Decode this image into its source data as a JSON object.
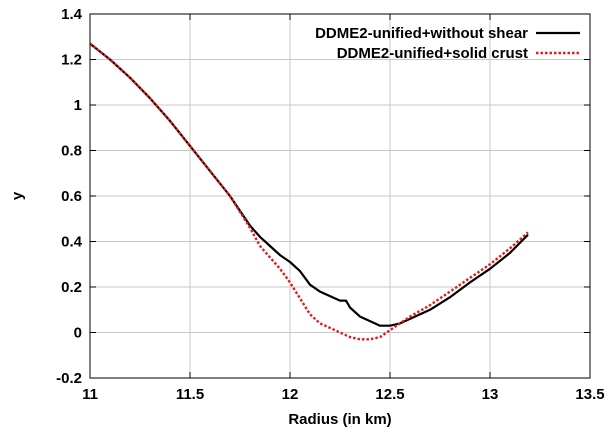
{
  "chart_data": {
    "type": "line",
    "title": "",
    "xlabel": "Radius (in km)",
    "ylabel": "y",
    "xlim": [
      11,
      13.5
    ],
    "ylim": [
      -0.2,
      1.4
    ],
    "xticks": [
      11,
      11.5,
      12,
      12.5,
      13,
      13.5
    ],
    "yticks": [
      -0.2,
      0,
      0.2,
      0.4,
      0.6,
      0.8,
      1,
      1.2,
      1.4
    ],
    "xtick_labels": [
      "11",
      "11.5",
      "12",
      "12.5",
      "13",
      "13.5"
    ],
    "ytick_labels": [
      "-0.2",
      "0",
      "0.2",
      "0.4",
      "0.6",
      "0.8",
      "1",
      "1.2",
      "1.4"
    ],
    "grid": true,
    "legend_position": "top-right",
    "series": [
      {
        "name": "DDME2-unified+without shear",
        "color": "#000000",
        "style": "solid",
        "x": [
          11.0,
          11.1,
          11.2,
          11.3,
          11.4,
          11.5,
          11.6,
          11.7,
          11.8,
          11.85,
          11.9,
          11.95,
          12.0,
          12.05,
          12.1,
          12.15,
          12.2,
          12.25,
          12.28,
          12.3,
          12.35,
          12.4,
          12.45,
          12.5,
          12.55,
          12.6,
          12.7,
          12.8,
          12.9,
          13.0,
          13.1,
          13.19
        ],
        "y": [
          1.27,
          1.2,
          1.12,
          1.03,
          0.93,
          0.82,
          0.71,
          0.6,
          0.47,
          0.42,
          0.38,
          0.34,
          0.31,
          0.27,
          0.21,
          0.18,
          0.16,
          0.14,
          0.14,
          0.11,
          0.07,
          0.05,
          0.03,
          0.03,
          0.04,
          0.06,
          0.1,
          0.155,
          0.22,
          0.28,
          0.35,
          0.43
        ]
      },
      {
        "name": "DDME2-unified+solid crust",
        "color": "#e31a1c",
        "style": "dotted",
        "x": [
          11.0,
          11.1,
          11.2,
          11.3,
          11.4,
          11.5,
          11.6,
          11.7,
          11.8,
          11.85,
          11.9,
          11.95,
          12.0,
          12.05,
          12.1,
          12.15,
          12.2,
          12.25,
          12.3,
          12.35,
          12.4,
          12.45,
          12.5,
          12.55,
          12.6,
          12.7,
          12.8,
          12.9,
          13.0,
          13.1,
          13.19
        ],
        "y": [
          1.27,
          1.2,
          1.12,
          1.03,
          0.93,
          0.82,
          0.71,
          0.6,
          0.46,
          0.38,
          0.33,
          0.28,
          0.22,
          0.15,
          0.08,
          0.04,
          0.02,
          0.0,
          -0.02,
          -0.03,
          -0.03,
          -0.02,
          0.01,
          0.04,
          0.07,
          0.12,
          0.18,
          0.24,
          0.3,
          0.37,
          0.44
        ]
      }
    ]
  }
}
